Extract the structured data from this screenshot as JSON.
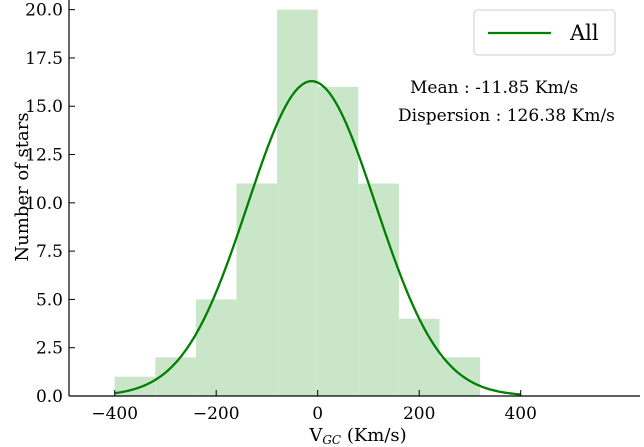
{
  "chart_data": {
    "type": "bar",
    "subtype": "histogram-with-gaussian-fit",
    "xlabel_main": "V",
    "xlabel_sub": "GC",
    "xlabel_rest": " (Km/s)",
    "ylabel": "Number of stars",
    "xlim": [
      -490,
      635
    ],
    "ylim": [
      0,
      20.5
    ],
    "x_ticks": [
      -400,
      -200,
      0,
      200,
      400
    ],
    "x_tick_labels": [
      "−400",
      "−200",
      "0",
      "200",
      "400"
    ],
    "y_ticks": [
      0,
      2.5,
      5,
      7.5,
      10,
      12.5,
      15,
      17.5,
      20
    ],
    "y_tick_labels": [
      "0.0",
      "2.5",
      "5.0",
      "7.5",
      "10.0",
      "12.5",
      "15.0",
      "17.5",
      "20.0"
    ],
    "bins": [
      {
        "x0": -400,
        "x1": -320,
        "count": 1
      },
      {
        "x0": -320,
        "x1": -240,
        "count": 2
      },
      {
        "x0": -240,
        "x1": -160,
        "count": 5
      },
      {
        "x0": -160,
        "x1": -80,
        "count": 11
      },
      {
        "x0": -80,
        "x1": 0,
        "count": 20
      },
      {
        "x0": 0,
        "x1": 80,
        "count": 16
      },
      {
        "x0": 80,
        "x1": 160,
        "count": 11
      },
      {
        "x0": 160,
        "x1": 240,
        "count": 4
      },
      {
        "x0": 240,
        "x1": 320,
        "count": 2
      }
    ],
    "fit": {
      "mean": -11.85,
      "sigma": 126.38,
      "peak": 16.3,
      "x_range": [
        -400,
        400
      ]
    },
    "annotations": {
      "mean": "Mean : -11.85 Km/s",
      "dispersion": "Dispersion : 126.38 Km/s"
    },
    "legend": {
      "position": "top-right",
      "entries": [
        {
          "label": "All",
          "color": "#008000"
        }
      ]
    },
    "colors": {
      "bars": "#c9e6c9",
      "fit_line": "#008000",
      "axes": "#000000"
    },
    "grid": false
  }
}
